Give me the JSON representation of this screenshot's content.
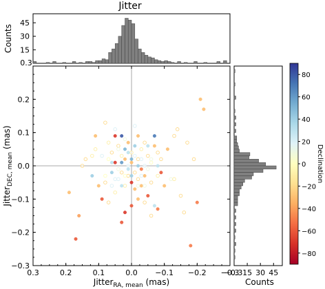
{
  "chart_data": {
    "type": "scatter",
    "title": "Jitter",
    "main": {
      "xlabel_main": "Jitter",
      "xlabel_sub": "RA, mean",
      "xlabel_unit": " (mas)",
      "ylabel_main": "Jitter",
      "ylabel_sub": "DEC, mean",
      "ylabel_unit": " (mas)",
      "xlim": [
        0.3,
        -0.3
      ],
      "ylim": [
        -0.3,
        0.3
      ],
      "xticks": [
        0.3,
        0.2,
        0.1,
        0.0,
        -0.1,
        -0.2,
        -0.3
      ],
      "xtick_labels": [
        "0.3",
        "0.2",
        "0.1",
        "0.0",
        "−0.1",
        "−0.2",
        "−0.3"
      ],
      "yticks": [
        0.2,
        0.1,
        0.0,
        -0.1,
        -0.2,
        -0.3
      ],
      "ytick_labels": [
        "0.2",
        "0.1",
        "0.0",
        "−0.1",
        "−0.2",
        "−0.3"
      ],
      "crosshair_x": 0.0,
      "crosshair_y": 0.0
    },
    "top_hist": {
      "ylabel": "Counts",
      "ylim": [
        0,
        55
      ],
      "yticks": [
        15,
        30,
        45
      ],
      "ytick_labels": [
        "15",
        "30",
        "45"
      ],
      "corner_label": "0.3",
      "bin_width": 0.01,
      "bins_x": [
        0.29,
        0.25,
        0.23,
        0.2,
        0.17,
        0.15,
        0.13,
        0.12,
        0.11,
        0.1,
        0.09,
        0.08,
        0.07,
        0.06,
        0.05,
        0.04,
        0.03,
        0.02,
        0.01,
        0.0,
        -0.01,
        -0.02,
        -0.03,
        -0.04,
        -0.05,
        -0.06,
        -0.07,
        -0.08,
        -0.09,
        -0.1,
        -0.11,
        -0.12,
        -0.13,
        -0.15,
        -0.17,
        -0.2,
        -0.23,
        -0.27,
        -0.29
      ],
      "counts": [
        2,
        1,
        2,
        1,
        2,
        1,
        2,
        2,
        1,
        3,
        3,
        5,
        4,
        12,
        16,
        22,
        30,
        42,
        50,
        48,
        44,
        27,
        16,
        12,
        9,
        7,
        6,
        4,
        3,
        2,
        3,
        2,
        1,
        2,
        1,
        2,
        1,
        2,
        3
      ]
    },
    "right_hist": {
      "xlabel": "Counts",
      "xlim": [
        0,
        55
      ],
      "xticks": [
        15,
        30,
        45
      ],
      "xtick_labels": [
        "15",
        "30",
        "45"
      ],
      "corner_label": "−0.3",
      "bin_width": 0.01,
      "bins_y": [
        0.28,
        0.24,
        0.2,
        0.16,
        0.14,
        0.12,
        0.1,
        0.08,
        0.07,
        0.06,
        0.05,
        0.04,
        0.03,
        0.02,
        0.01,
        0.0,
        -0.01,
        -0.02,
        -0.03,
        -0.04,
        -0.05,
        -0.06,
        -0.07,
        -0.08,
        -0.09,
        -0.1,
        -0.11,
        -0.12,
        -0.14,
        -0.16,
        -0.18,
        -0.2,
        -0.22,
        -0.24,
        -0.26,
        -0.28
      ],
      "counts": [
        1,
        1,
        2,
        1,
        2,
        2,
        2,
        3,
        3,
        4,
        5,
        6,
        18,
        17,
        28,
        36,
        48,
        33,
        22,
        20,
        12,
        10,
        8,
        6,
        6,
        4,
        4,
        4,
        2,
        2,
        2,
        2,
        1,
        2,
        1,
        1
      ]
    },
    "colorbar": {
      "label": "Declination",
      "range": [
        -90,
        90
      ],
      "ticks": [
        80,
        60,
        40,
        20,
        0,
        -20,
        -40,
        -60,
        -80
      ],
      "tick_labels": [
        "80",
        "60",
        "40",
        "20",
        "0",
        "−20",
        "−40",
        "−60",
        "−80"
      ],
      "stops": [
        "#313695",
        "#4575b4",
        "#74add1",
        "#abd9e9",
        "#e0f3f8",
        "#ffffbf",
        "#fee090",
        "#fdae61",
        "#f46d43",
        "#d73027",
        "#a50026"
      ]
    },
    "points": [
      [
        -0.22,
        0.17,
        -30
      ],
      [
        -0.17,
        0.07,
        -20
      ],
      [
        -0.2,
        -0.11,
        -50
      ],
      [
        -0.16,
        -0.14,
        -20
      ],
      [
        -0.14,
        0.11,
        -20
      ],
      [
        -0.12,
        -0.04,
        10
      ],
      [
        -0.11,
        0.05,
        -30
      ],
      [
        -0.1,
        -0.06,
        -30
      ],
      [
        -0.09,
        0.02,
        -20
      ],
      [
        -0.09,
        -0.02,
        -60
      ],
      [
        -0.08,
        -0.03,
        -10
      ],
      [
        -0.08,
        0.04,
        -20
      ],
      [
        -0.07,
        -0.12,
        30
      ],
      [
        -0.07,
        0.06,
        -30
      ],
      [
        -0.06,
        -0.05,
        -20
      ],
      [
        -0.06,
        0.01,
        0
      ],
      [
        -0.05,
        0.03,
        -20
      ],
      [
        -0.05,
        -0.09,
        -60
      ],
      [
        -0.04,
        0.07,
        -20
      ],
      [
        -0.04,
        -0.03,
        -30
      ],
      [
        -0.04,
        0.0,
        20
      ],
      [
        -0.03,
        0.05,
        -10
      ],
      [
        -0.03,
        -0.06,
        -30
      ],
      [
        -0.03,
        -0.01,
        -50
      ],
      [
        -0.02,
        0.09,
        -30
      ],
      [
        -0.02,
        0.02,
        -20
      ],
      [
        -0.02,
        -0.04,
        -20
      ],
      [
        -0.01,
        0.06,
        40
      ],
      [
        -0.01,
        -0.07,
        -30
      ],
      [
        -0.01,
        -0.02,
        -20
      ],
      [
        0.0,
        0.04,
        -10
      ],
      [
        0.0,
        -0.05,
        -70
      ],
      [
        0.0,
        0.01,
        -30
      ],
      [
        0.01,
        0.07,
        -30
      ],
      [
        0.01,
        -0.03,
        -20
      ],
      [
        0.01,
        0.0,
        20
      ],
      [
        0.02,
        0.05,
        50
      ],
      [
        0.02,
        -0.06,
        -10
      ],
      [
        0.02,
        0.02,
        -30
      ],
      [
        0.03,
        0.09,
        80
      ],
      [
        0.03,
        -0.02,
        -20
      ],
      [
        0.03,
        0.03,
        -10
      ],
      [
        0.04,
        -0.04,
        20
      ],
      [
        0.04,
        0.06,
        -20
      ],
      [
        0.05,
        0.01,
        -70
      ],
      [
        0.05,
        -0.08,
        -10
      ],
      [
        0.06,
        0.04,
        -20
      ],
      [
        0.06,
        -0.02,
        40
      ],
      [
        0.07,
        0.07,
        -10
      ],
      [
        0.08,
        -0.05,
        -20
      ],
      [
        0.09,
        0.03,
        20
      ],
      [
        0.1,
        -0.06,
        -30
      ],
      [
        0.11,
        0.05,
        -10
      ],
      [
        0.12,
        -0.03,
        40
      ],
      [
        0.14,
        0.02,
        -20
      ],
      [
        0.16,
        -0.15,
        -40
      ],
      [
        0.17,
        -0.22,
        -60
      ],
      [
        0.03,
        -0.17,
        -60
      ],
      [
        -0.08,
        -0.13,
        -50
      ],
      [
        -0.18,
        -0.24,
        -50
      ],
      [
        -0.02,
        -0.1,
        -30
      ],
      [
        0.05,
        0.11,
        20
      ],
      [
        0.15,
        0.0,
        -20
      ],
      [
        -0.13,
        0.09,
        -20
      ],
      [
        0.0,
        -0.12,
        -60
      ],
      [
        -0.04,
        -0.11,
        -20
      ],
      [
        0.07,
        -0.11,
        -20
      ],
      [
        0.11,
        0.09,
        -30
      ],
      [
        -0.07,
        0.09,
        70
      ],
      [
        0.05,
        0.09,
        -70
      ],
      [
        -0.19,
        0.02,
        -20
      ],
      [
        0.12,
        0.03,
        -10
      ],
      [
        -0.15,
        -0.09,
        -20
      ],
      [
        0.19,
        -0.08,
        -30
      ],
      [
        -0.13,
        -0.04,
        -10
      ],
      [
        0.09,
        -0.1,
        -60
      ],
      [
        -0.01,
        0.12,
        20
      ],
      [
        0.08,
        0.13,
        -20
      ],
      [
        -0.06,
        -0.15,
        -20
      ],
      [
        0.02,
        -0.14,
        -70
      ],
      [
        -0.21,
        0.2,
        -30
      ],
      [
        0.03,
        0.01,
        60
      ],
      [
        -0.02,
        0.0,
        40
      ],
      [
        0.01,
        -0.01,
        30
      ],
      [
        0.0,
        0.02,
        50
      ],
      [
        -0.03,
        0.02,
        20
      ],
      [
        0.04,
        -0.01,
        10
      ],
      [
        0.02,
        -0.03,
        0
      ],
      [
        -0.05,
        -0.01,
        10
      ],
      [
        0.06,
        0.01,
        30
      ],
      [
        -0.01,
        0.03,
        20
      ],
      [
        0.03,
        -0.06,
        30
      ],
      [
        -0.04,
        -0.06,
        10
      ],
      [
        0.05,
        -0.04,
        20
      ],
      [
        0.07,
        0.02,
        0
      ],
      [
        -0.06,
        0.02,
        10
      ],
      [
        0.01,
        0.04,
        30
      ],
      [
        -0.03,
        -0.03,
        20
      ],
      [
        0.02,
        0.08,
        10
      ],
      [
        -0.05,
        0.06,
        30
      ],
      [
        0.04,
        0.05,
        10
      ],
      [
        0.08,
        -0.03,
        0
      ],
      [
        -0.08,
        0.0,
        30
      ],
      [
        0.06,
        -0.06,
        20
      ],
      [
        0.0,
        -0.03,
        40
      ],
      [
        -0.02,
        -0.06,
        10
      ]
    ]
  }
}
